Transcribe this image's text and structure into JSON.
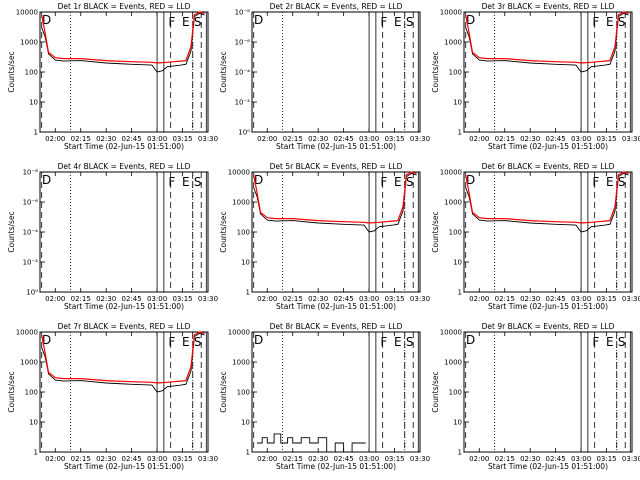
{
  "figure": {
    "panels": [
      {
        "title": "Det 1r BLACK = Events, RED = LLD"
      },
      {
        "title": "Det 2r BLACK = Events, RED = LLD"
      },
      {
        "title": "Det 3r BLACK = Events, RED = LLD"
      },
      {
        "title": "Det 4r BLACK = Events, RED = LLD"
      },
      {
        "title": "Det 5r BLACK = Events, RED = LLD"
      },
      {
        "title": "Det 6r BLACK = Events, RED = LLD"
      },
      {
        "title": "Det 7r BLACK = Events, RED = LLD"
      },
      {
        "title": "Det 8r BLACK = Events, RED = LLD"
      },
      {
        "title": "Det 9r BLACK = Events, RED = LLD"
      }
    ]
  },
  "chart_data": [
    {
      "type": "line",
      "title": "Det 1r BLACK = Events, RED = LLD",
      "xlabel": "Start Time (02-Jun-15 01:51:00)",
      "ylabel": "Counts/sec",
      "xticks": [
        "02:00",
        "02:15",
        "02:30",
        "02:45",
        "03:00",
        "03:15",
        "03:30"
      ],
      "yscale": "log",
      "ylim": [
        1,
        10000
      ],
      "yticks": [
        "1",
        "10",
        "100",
        "1000",
        "10000"
      ],
      "markers": [
        {
          "time": "03:09",
          "label": "F"
        },
        {
          "time": "03:17",
          "label": "E"
        },
        {
          "time": "03:24",
          "label": "S"
        }
      ],
      "series": [
        {
          "name": "Events",
          "color": "#000000",
          "x": [
            "01:52",
            "01:54",
            "01:56",
            "02:00",
            "02:05",
            "02:15",
            "02:30",
            "02:45",
            "02:57",
            "03:00",
            "03:03",
            "03:06",
            "03:10",
            "03:14",
            "03:17",
            "03:20",
            "03:22",
            "03:25",
            "03:28"
          ],
          "y": [
            3000,
            1500,
            400,
            250,
            230,
            240,
            200,
            180,
            170,
            100,
            110,
            150,
            160,
            170,
            180,
            500,
            7000,
            9000,
            8000
          ]
        },
        {
          "name": "LLD",
          "color": "#ff0000",
          "x": [
            "01:52",
            "01:54",
            "01:56",
            "02:00",
            "02:05",
            "02:15",
            "02:30",
            "02:45",
            "02:57",
            "03:00",
            "03:03",
            "03:06",
            "03:10",
            "03:14",
            "03:17",
            "03:20",
            "03:22",
            "03:25",
            "03:28"
          ],
          "y": [
            8000,
            2000,
            450,
            300,
            280,
            280,
            240,
            220,
            210,
            200,
            205,
            210,
            220,
            230,
            240,
            700,
            8000,
            10000,
            9000
          ]
        }
      ]
    },
    {
      "type": "line",
      "title": "Det 2r BLACK = Events, RED = LLD",
      "xlabel": "Start Time (02-Jun-15 01:51:00)",
      "ylabel": "Counts/sec",
      "xticks": [
        "02:00",
        "02:15",
        "02:30",
        "02:45",
        "03:00",
        "03:15",
        "03:30"
      ],
      "yscale": "log",
      "ylim": [
        1,
        10
      ],
      "yticks": [
        "10⁰",
        "10⁻²",
        "10⁻⁴",
        "10⁻⁶",
        "10⁻⁸"
      ],
      "markers": [
        {
          "time": "03:09",
          "label": "F"
        },
        {
          "time": "03:17",
          "label": "E"
        },
        {
          "time": "03:24",
          "label": "S"
        }
      ],
      "series": []
    },
    {
      "type": "line",
      "title": "Det 3r BLACK = Events, RED = LLD",
      "xlabel": "Start Time (02-Jun-15 01:51:00)",
      "ylabel": "Counts/sec",
      "xticks": [
        "02:00",
        "02:15",
        "02:30",
        "02:45",
        "03:00",
        "03:15",
        "03:30"
      ],
      "yscale": "log",
      "ylim": [
        1,
        10000
      ],
      "yticks": [
        "1",
        "10",
        "100",
        "1000",
        "10000"
      ],
      "markers": [
        {
          "time": "03:09",
          "label": "F"
        },
        {
          "time": "03:17",
          "label": "E"
        },
        {
          "time": "03:24",
          "label": "S"
        }
      ],
      "series": [
        {
          "name": "Events",
          "color": "#000000",
          "x": [
            "01:52",
            "01:54",
            "01:56",
            "02:00",
            "02:05",
            "02:15",
            "02:30",
            "02:45",
            "02:57",
            "03:00",
            "03:03",
            "03:06",
            "03:10",
            "03:14",
            "03:17",
            "03:20",
            "03:22",
            "03:25",
            "03:28"
          ],
          "y": [
            3000,
            1500,
            400,
            250,
            230,
            240,
            200,
            180,
            170,
            100,
            110,
            150,
            160,
            170,
            180,
            500,
            7000,
            9000,
            8000
          ]
        },
        {
          "name": "LLD",
          "color": "#ff0000",
          "x": [
            "01:52",
            "01:54",
            "01:56",
            "02:00",
            "02:05",
            "02:15",
            "02:30",
            "02:45",
            "02:57",
            "03:00",
            "03:03",
            "03:06",
            "03:10",
            "03:14",
            "03:17",
            "03:20",
            "03:22",
            "03:25",
            "03:28"
          ],
          "y": [
            8000,
            2000,
            450,
            300,
            280,
            280,
            240,
            220,
            210,
            200,
            205,
            210,
            220,
            230,
            240,
            700,
            8000,
            10000,
            9000
          ]
        }
      ]
    },
    {
      "type": "line",
      "title": "Det 4r BLACK = Events, RED = LLD",
      "xlabel": "Start Time (02-Jun-15 01:51:00)",
      "ylabel": "Counts/sec",
      "xticks": [
        "02:00",
        "02:15",
        "02:30",
        "02:45",
        "03:00",
        "03:15",
        "03:30"
      ],
      "yscale": "log",
      "ylim": [
        1,
        10
      ],
      "yticks": [
        "10⁰",
        "10⁻²",
        "10⁻⁴",
        "10⁻⁶",
        "10⁻⁸"
      ],
      "markers": [
        {
          "time": "03:09",
          "label": "F"
        },
        {
          "time": "03:17",
          "label": "E"
        },
        {
          "time": "03:24",
          "label": "S"
        }
      ],
      "series": []
    },
    {
      "type": "line",
      "title": "Det 5r BLACK = Events, RED = LLD",
      "xlabel": "Start Time (02-Jun-15 01:51:00)",
      "ylabel": "Counts/sec",
      "xticks": [
        "02:00",
        "02:15",
        "02:30",
        "02:45",
        "03:00",
        "03:15",
        "03:30"
      ],
      "yscale": "log",
      "ylim": [
        1,
        10000
      ],
      "yticks": [
        "1",
        "10",
        "100",
        "1000",
        "10000"
      ],
      "markers": [
        {
          "time": "03:09",
          "label": "F"
        },
        {
          "time": "03:17",
          "label": "E"
        },
        {
          "time": "03:24",
          "label": "S"
        }
      ],
      "series": [
        {
          "name": "Events",
          "color": "#000000",
          "x": [
            "01:52",
            "01:54",
            "01:56",
            "02:00",
            "02:05",
            "02:15",
            "02:30",
            "02:45",
            "02:57",
            "03:00",
            "03:03",
            "03:06",
            "03:10",
            "03:14",
            "03:17",
            "03:20",
            "03:22",
            "03:25",
            "03:28"
          ],
          "y": [
            3000,
            1500,
            400,
            250,
            230,
            240,
            200,
            180,
            170,
            100,
            110,
            150,
            160,
            170,
            180,
            500,
            7000,
            9000,
            8000
          ]
        },
        {
          "name": "LLD",
          "color": "#ff0000",
          "x": [
            "01:52",
            "01:54",
            "01:56",
            "02:00",
            "02:05",
            "02:15",
            "02:30",
            "02:45",
            "02:57",
            "03:00",
            "03:03",
            "03:06",
            "03:10",
            "03:14",
            "03:17",
            "03:20",
            "03:22",
            "03:25",
            "03:28"
          ],
          "y": [
            8000,
            2000,
            450,
            300,
            280,
            280,
            240,
            220,
            210,
            200,
            205,
            210,
            220,
            230,
            240,
            700,
            8000,
            10000,
            9000
          ]
        }
      ]
    },
    {
      "type": "line",
      "title": "Det 6r BLACK = Events, RED = LLD",
      "xlabel": "Start Time (02-Jun-15 01:51:00)",
      "ylabel": "Counts/sec",
      "xticks": [
        "02:00",
        "02:15",
        "02:30",
        "02:45",
        "03:00",
        "03:15",
        "03:30"
      ],
      "yscale": "log",
      "ylim": [
        1,
        10000
      ],
      "yticks": [
        "1",
        "10",
        "100",
        "1000",
        "10000"
      ],
      "markers": [
        {
          "time": "03:09",
          "label": "F"
        },
        {
          "time": "03:17",
          "label": "E"
        },
        {
          "time": "03:24",
          "label": "S"
        }
      ],
      "series": [
        {
          "name": "Events",
          "color": "#000000",
          "x": [
            "01:52",
            "01:54",
            "01:56",
            "02:00",
            "02:05",
            "02:15",
            "02:30",
            "02:45",
            "02:57",
            "03:00",
            "03:03",
            "03:06",
            "03:10",
            "03:14",
            "03:17",
            "03:20",
            "03:22",
            "03:25",
            "03:28"
          ],
          "y": [
            3000,
            1500,
            400,
            250,
            230,
            240,
            200,
            180,
            170,
            100,
            110,
            150,
            160,
            170,
            180,
            500,
            7000,
            9000,
            8000
          ]
        },
        {
          "name": "LLD",
          "color": "#ff0000",
          "x": [
            "01:52",
            "01:54",
            "01:56",
            "02:00",
            "02:05",
            "02:15",
            "02:30",
            "02:45",
            "02:57",
            "03:00",
            "03:03",
            "03:06",
            "03:10",
            "03:14",
            "03:17",
            "03:20",
            "03:22",
            "03:25",
            "03:28"
          ],
          "y": [
            8000,
            2000,
            450,
            300,
            280,
            280,
            240,
            220,
            210,
            200,
            205,
            210,
            220,
            230,
            240,
            700,
            8000,
            10000,
            9000
          ]
        }
      ]
    },
    {
      "type": "line",
      "title": "Det 7r BLACK = Events, RED = LLD",
      "xlabel": "Start Time (02-Jun-15 01:51:00)",
      "ylabel": "Counts/sec",
      "xticks": [
        "02:00",
        "02:15",
        "02:30",
        "02:45",
        "03:00",
        "03:15",
        "03:30"
      ],
      "yscale": "log",
      "ylim": [
        1,
        10000
      ],
      "yticks": [
        "1",
        "10",
        "100",
        "1000",
        "10000"
      ],
      "markers": [
        {
          "time": "03:09",
          "label": "F"
        },
        {
          "time": "03:17",
          "label": "E"
        },
        {
          "time": "03:24",
          "label": "S"
        }
      ],
      "series": [
        {
          "name": "Events",
          "color": "#000000",
          "x": [
            "01:52",
            "01:54",
            "01:56",
            "02:00",
            "02:05",
            "02:15",
            "02:30",
            "02:45",
            "02:57",
            "03:00",
            "03:03",
            "03:06",
            "03:10",
            "03:14",
            "03:17",
            "03:20",
            "03:22",
            "03:25",
            "03:28"
          ],
          "y": [
            3000,
            1500,
            400,
            250,
            230,
            240,
            200,
            180,
            170,
            100,
            110,
            150,
            160,
            170,
            180,
            500,
            7000,
            9000,
            8000
          ]
        },
        {
          "name": "LLD",
          "color": "#ff0000",
          "x": [
            "01:52",
            "01:54",
            "01:56",
            "02:00",
            "02:05",
            "02:15",
            "02:30",
            "02:45",
            "02:57",
            "03:00",
            "03:03",
            "03:06",
            "03:10",
            "03:14",
            "03:17",
            "03:20",
            "03:22",
            "03:25",
            "03:28"
          ],
          "y": [
            8000,
            2000,
            450,
            300,
            280,
            280,
            240,
            220,
            210,
            200,
            205,
            210,
            220,
            230,
            240,
            700,
            8000,
            10000,
            9000
          ]
        }
      ]
    },
    {
      "type": "line",
      "title": "Det 8r BLACK = Events, RED = LLD",
      "xlabel": "Start Time (02-Jun-15 01:51:00)",
      "ylabel": "Counts/sec",
      "xticks": [
        "02:00",
        "02:15",
        "02:30",
        "02:45",
        "03:00",
        "03:15",
        "03:30"
      ],
      "yscale": "log",
      "ylim": [
        1,
        10000
      ],
      "yticks": [
        "1",
        "10",
        "100",
        "1000",
        "10000"
      ],
      "markers": [
        {
          "time": "03:09",
          "label": "F"
        },
        {
          "time": "03:17",
          "label": "E"
        },
        {
          "time": "03:24",
          "label": "S"
        }
      ],
      "series": [
        {
          "name": "Events",
          "color": "#000000",
          "x": [
            "01:54",
            "01:57",
            "02:00",
            "02:04",
            "02:08",
            "02:12",
            "02:15",
            "02:20",
            "02:25",
            "02:30",
            "02:35",
            "02:40",
            "02:45",
            "02:50",
            "02:55",
            "02:58"
          ],
          "y": [
            2,
            3,
            2,
            4,
            2,
            3,
            2,
            3,
            2,
            3,
            1,
            2,
            1,
            2,
            2,
            2
          ]
        }
      ]
    },
    {
      "type": "line",
      "title": "Det 9r BLACK = Events, RED = LLD",
      "xlabel": "Start Time (02-Jun-15 01:51:00)",
      "ylabel": "Counts/sec",
      "xticks": [
        "02:00",
        "02:15",
        "02:30",
        "02:45",
        "03:00",
        "03:15",
        "03:30"
      ],
      "yscale": "log",
      "ylim": [
        1,
        10000
      ],
      "yticks": [
        "1",
        "10",
        "100",
        "1000",
        "10000"
      ],
      "markers": [
        {
          "time": "03:09",
          "label": "F"
        },
        {
          "time": "03:17",
          "label": "E"
        },
        {
          "time": "03:24",
          "label": "S"
        }
      ],
      "series": []
    }
  ]
}
